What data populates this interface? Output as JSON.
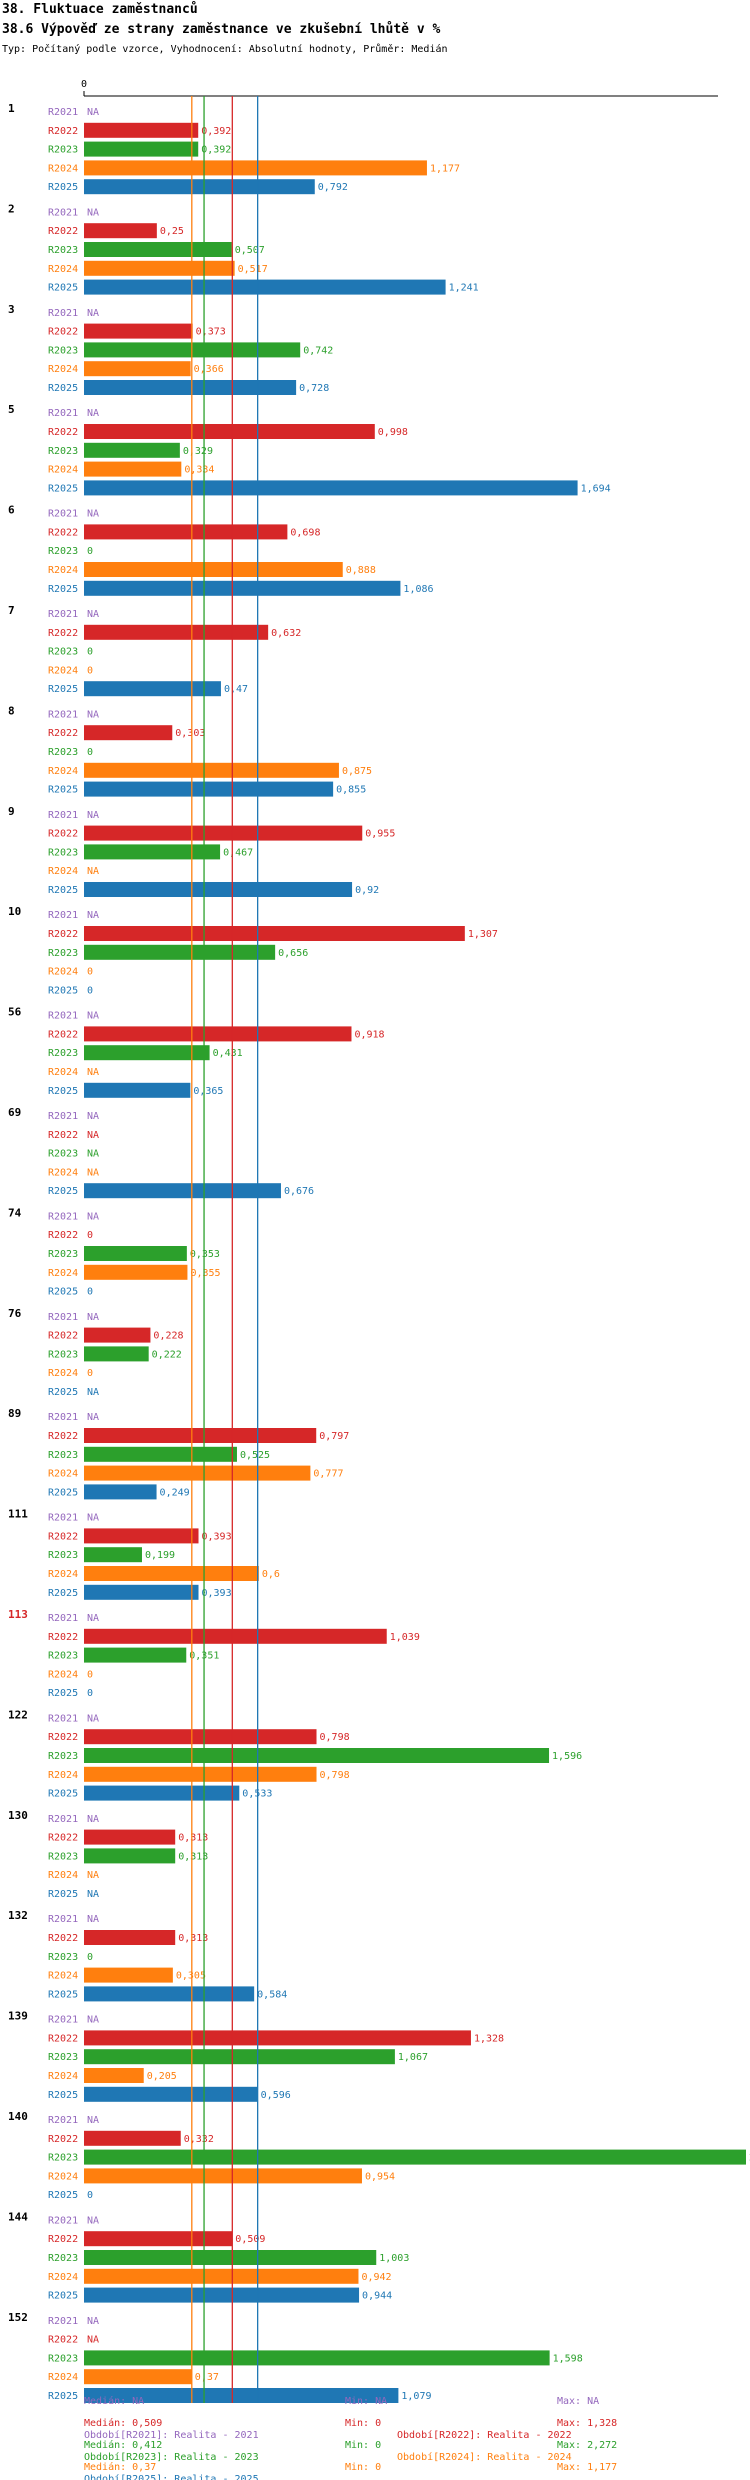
{
  "header": {
    "title": "38. Fluktuace zaměstnanců",
    "subtitle": "38.6 Výpověď ze strany zaměstnance ve zkušební lhůtě v %",
    "info": "Typ: Počítaný podle vzorce, Vyhodnocení: Absolutní hodnoty, Průměr: Medián"
  },
  "chart_data": {
    "type": "bar",
    "orientation": "horizontal",
    "axis_zero_label": "0",
    "xlim": [
      0,
      2.272
    ],
    "series": [
      {
        "name": "R2021",
        "color": "#9467bd"
      },
      {
        "name": "R2022",
        "color": "#d62728"
      },
      {
        "name": "R2023",
        "color": "#2ca02c"
      },
      {
        "name": "R2024",
        "color": "#ff7f0e"
      },
      {
        "name": "R2025",
        "color": "#1f77b4"
      }
    ],
    "categories": [
      {
        "id": "1",
        "highlight": false,
        "values": [
          null,
          0.392,
          0.392,
          1.177,
          0.792
        ],
        "labels": [
          "NA",
          "0,392",
          "0,392",
          "1,177",
          "0,792"
        ]
      },
      {
        "id": "2",
        "highlight": false,
        "values": [
          null,
          0.25,
          0.507,
          0.517,
          1.241
        ],
        "labels": [
          "NA",
          "0,25",
          "0,507",
          "0,517",
          "1,241"
        ]
      },
      {
        "id": "3",
        "highlight": false,
        "values": [
          null,
          0.373,
          0.742,
          0.366,
          0.728
        ],
        "labels": [
          "NA",
          "0,373",
          "0,742",
          "0,366",
          "0,728"
        ]
      },
      {
        "id": "5",
        "highlight": false,
        "values": [
          null,
          0.998,
          0.329,
          0.334,
          1.694
        ],
        "labels": [
          "NA",
          "0,998",
          "0,329",
          "0,334",
          "1,694"
        ]
      },
      {
        "id": "6",
        "highlight": false,
        "values": [
          null,
          0.698,
          0,
          0.888,
          1.086
        ],
        "labels": [
          "NA",
          "0,698",
          "0",
          "0,888",
          "1,086"
        ]
      },
      {
        "id": "7",
        "highlight": false,
        "values": [
          null,
          0.632,
          0,
          0,
          0.47
        ],
        "labels": [
          "NA",
          "0,632",
          "0",
          "0",
          "0,47"
        ]
      },
      {
        "id": "8",
        "highlight": false,
        "values": [
          null,
          0.303,
          0,
          0.875,
          0.855
        ],
        "labels": [
          "NA",
          "0,303",
          "0",
          "0,875",
          "0,855"
        ]
      },
      {
        "id": "9",
        "highlight": false,
        "values": [
          null,
          0.955,
          0.467,
          null,
          0.92
        ],
        "labels": [
          "NA",
          "0,955",
          "0,467",
          "NA",
          "0,92"
        ]
      },
      {
        "id": "10",
        "highlight": false,
        "values": [
          null,
          1.307,
          0.656,
          0,
          0
        ],
        "labels": [
          "NA",
          "1,307",
          "0,656",
          "0",
          "0"
        ]
      },
      {
        "id": "56",
        "highlight": false,
        "values": [
          null,
          0.918,
          0.431,
          null,
          0.365
        ],
        "labels": [
          "NA",
          "0,918",
          "0,431",
          "NA",
          "0,365"
        ]
      },
      {
        "id": "69",
        "highlight": false,
        "values": [
          null,
          null,
          null,
          null,
          0.676
        ],
        "labels": [
          "NA",
          "NA",
          "NA",
          "NA",
          "0,676"
        ]
      },
      {
        "id": "74",
        "highlight": false,
        "values": [
          null,
          0,
          0.353,
          0.355,
          0
        ],
        "labels": [
          "NA",
          "0",
          "0,353",
          "0,355",
          "0"
        ]
      },
      {
        "id": "76",
        "highlight": false,
        "values": [
          null,
          0.228,
          0.222,
          0,
          null
        ],
        "labels": [
          "NA",
          "0,228",
          "0,222",
          "0",
          "NA"
        ]
      },
      {
        "id": "89",
        "highlight": false,
        "values": [
          null,
          0.797,
          0.525,
          0.777,
          0.249
        ],
        "labels": [
          "NA",
          "0,797",
          "0,525",
          "0,777",
          "0,249"
        ]
      },
      {
        "id": "111",
        "highlight": false,
        "values": [
          null,
          0.393,
          0.199,
          0.6,
          0.393
        ],
        "labels": [
          "NA",
          "0,393",
          "0,199",
          "0,6",
          "0,393"
        ]
      },
      {
        "id": "113",
        "highlight": true,
        "values": [
          null,
          1.039,
          0.351,
          0,
          0
        ],
        "labels": [
          "NA",
          "1,039",
          "0,351",
          "0",
          "0"
        ]
      },
      {
        "id": "122",
        "highlight": false,
        "values": [
          null,
          0.798,
          1.596,
          0.798,
          0.533
        ],
        "labels": [
          "NA",
          "0,798",
          "1,596",
          "0,798",
          "0,533"
        ]
      },
      {
        "id": "130",
        "highlight": false,
        "values": [
          null,
          0.313,
          0.313,
          null,
          null
        ],
        "labels": [
          "NA",
          "0,313",
          "0,313",
          "NA",
          "NA"
        ]
      },
      {
        "id": "132",
        "highlight": false,
        "values": [
          null,
          0.313,
          0,
          0.305,
          0.584
        ],
        "labels": [
          "NA",
          "0,313",
          "0",
          "0,305",
          "0,584"
        ]
      },
      {
        "id": "139",
        "highlight": false,
        "values": [
          null,
          1.328,
          1.067,
          0.205,
          0.596
        ],
        "labels": [
          "NA",
          "1,328",
          "1,067",
          "0,205",
          "0,596"
        ]
      },
      {
        "id": "140",
        "highlight": false,
        "values": [
          null,
          0.332,
          2.272,
          0.954,
          0
        ],
        "labels": [
          "NA",
          "0,332",
          "2,272",
          "0,954",
          "0"
        ]
      },
      {
        "id": "144",
        "highlight": false,
        "values": [
          null,
          0.509,
          1.003,
          0.942,
          0.944
        ],
        "labels": [
          "NA",
          "0,509",
          "1,003",
          "0,942",
          "0,944"
        ]
      },
      {
        "id": "152",
        "highlight": false,
        "values": [
          null,
          null,
          1.598,
          0.37,
          1.079
        ],
        "labels": [
          "NA",
          "NA",
          "1,598",
          "0,37",
          "1,079"
        ]
      }
    ],
    "median_lines": [
      {
        "series": "R2022",
        "value": 0.509,
        "color": "#d62728"
      },
      {
        "series": "R2023",
        "value": 0.412,
        "color": "#2ca02c"
      },
      {
        "series": "R2024",
        "value": 0.37,
        "color": "#ff7f0e"
      },
      {
        "series": "R2025",
        "value": 0.596,
        "color": "#1f77b4"
      }
    ],
    "legend": [
      {
        "label": "Období[R2021]: Realita - 2021",
        "color": "#9467bd"
      },
      {
        "label": "Období[R2022]: Realita - 2022",
        "color": "#d62728"
      },
      {
        "label": "Období[R2023]: Realita - 2023",
        "color": "#2ca02c"
      },
      {
        "label": "Období[R2024]: Realita - 2024",
        "color": "#ff7f0e"
      },
      {
        "label": "Období[R2025]: Realita - 2025",
        "color": "#1f77b4"
      }
    ],
    "stats": [
      {
        "color": "#9467bd",
        "median": "Medián: NA",
        "min": "Min: NA",
        "max": "Max: NA"
      },
      {
        "color": "#d62728",
        "median": "Medián: 0,509",
        "min": "Min: 0",
        "max": "Max: 1,328"
      },
      {
        "color": "#2ca02c",
        "median": "Medián: 0,412",
        "min": "Min: 0",
        "max": "Max: 2,272"
      },
      {
        "color": "#ff7f0e",
        "median": "Medián: 0,37",
        "min": "Min: 0",
        "max": "Max: 1,177"
      },
      {
        "color": "#1f77b4",
        "median": "Medián: 0,596",
        "min": "Min: 0",
        "max": "Max: 1,694"
      }
    ]
  }
}
